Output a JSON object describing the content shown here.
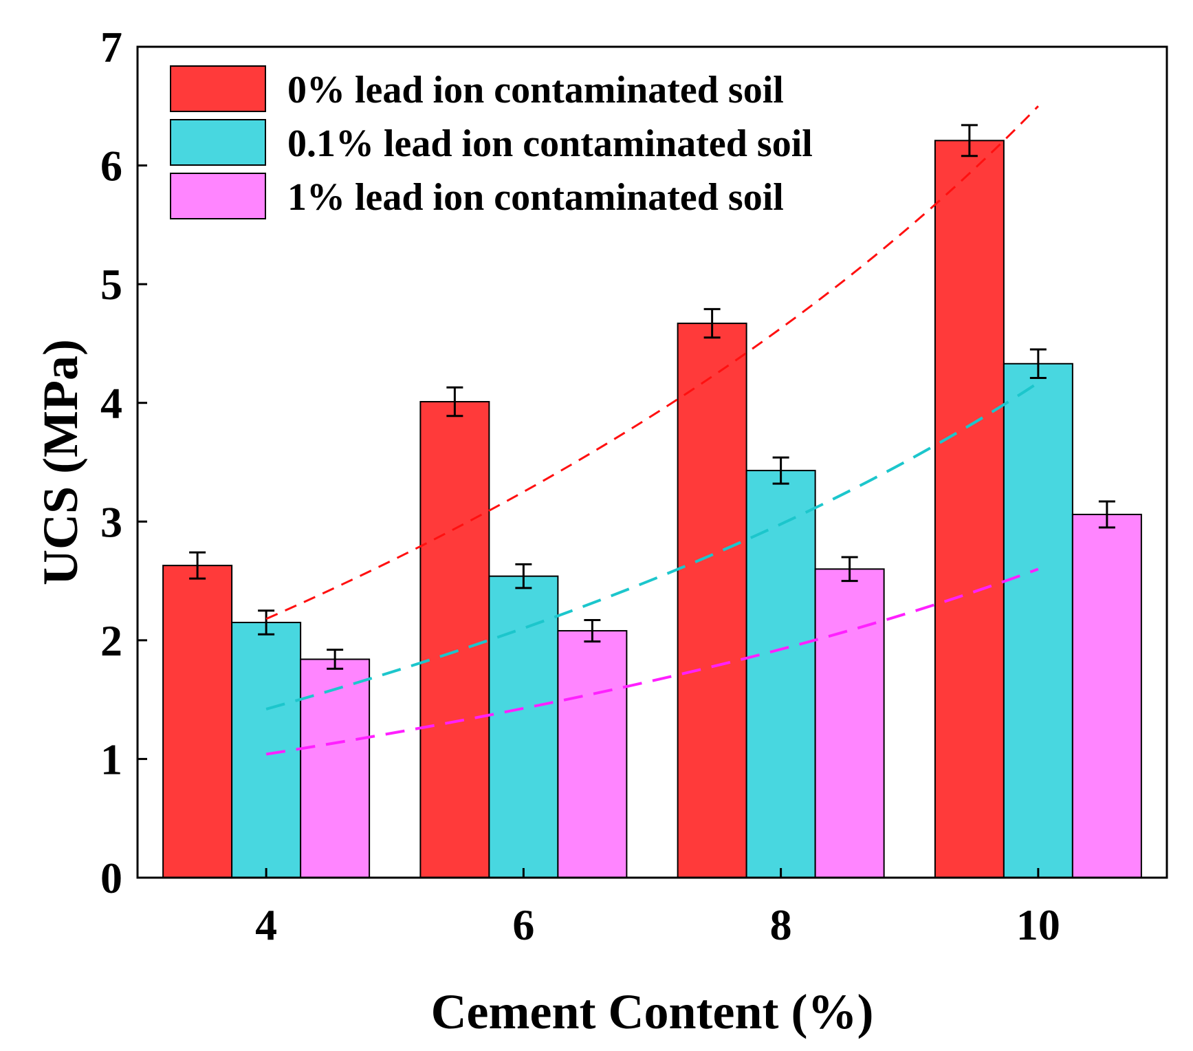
{
  "chart_data": {
    "type": "bar",
    "title": "",
    "xlabel": "Cement Content (%)",
    "ylabel": "UCS (MPa)",
    "categories": [
      "4",
      "6",
      "8",
      "10"
    ],
    "x": [
      4,
      6,
      8,
      10
    ],
    "xlim": [
      3,
      11
    ],
    "ylim": [
      0,
      7
    ],
    "yticks": [
      0,
      1,
      2,
      3,
      4,
      5,
      6,
      7
    ],
    "yticklabels": [
      "0",
      "1",
      "2",
      "3",
      "4",
      "5",
      "6",
      "7"
    ],
    "legend_position": "top-left",
    "grid": false,
    "series": [
      {
        "name": "0% lead ion contaminated soil",
        "color": "#ff3a3a",
        "values": [
          2.63,
          4.01,
          4.67,
          6.21
        ],
        "errors": [
          0.11,
          0.12,
          0.12,
          0.13
        ],
        "trend": {
          "color": "#ff1010",
          "x": [
            4,
            10
          ],
          "y": [
            2.18,
            6.5
          ]
        }
      },
      {
        "name": "0.1% lead ion contaminated soil",
        "color": "#48d7e0",
        "values": [
          2.15,
          2.54,
          3.43,
          4.33
        ],
        "errors": [
          0.1,
          0.1,
          0.11,
          0.12
        ],
        "trend": {
          "color": "#1cc6cc",
          "x": [
            4,
            10
          ],
          "y": [
            1.42,
            4.17
          ]
        }
      },
      {
        "name": "1% lead ion contaminated soil",
        "color": "#ff85ff",
        "values": [
          1.84,
          2.08,
          2.6,
          3.06
        ],
        "errors": [
          0.08,
          0.09,
          0.1,
          0.11
        ],
        "trend": {
          "color": "#ff20ff",
          "x": [
            4,
            10
          ],
          "y": [
            1.04,
            2.6
          ]
        }
      }
    ]
  }
}
